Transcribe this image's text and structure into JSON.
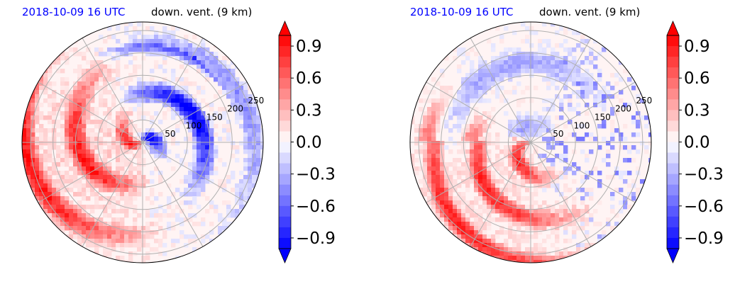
{
  "chart_data": [
    {
      "type": "heatmap",
      "projection": "polar",
      "title_left": "2018-10-09 16 UTC",
      "title_right": "down. vent. (9 km)",
      "radial_ticks": [
        "50",
        "100",
        "150",
        "200",
        "250"
      ],
      "radial_tick_values": [
        50,
        100,
        150,
        200,
        250
      ],
      "colorbar": {
        "ticks": [
          "0.9",
          "0.6",
          "0.3",
          "0.0",
          "−0.3",
          "−0.6",
          "−0.9"
        ],
        "tick_values": [
          0.9,
          0.6,
          0.3,
          0.0,
          -0.3,
          -0.6,
          -0.9
        ],
        "range": [
          -1.0,
          1.0
        ],
        "extend": "both",
        "colormap": "bwr",
        "positive_color": "#ff0000",
        "negative_color": "#0000ff"
      },
      "field_summary": {
        "positive_sector": "west-southwest, spiral bands",
        "negative_sector": "northeast to east",
        "peak_positive": 1.0,
        "peak_negative": -1.0
      }
    },
    {
      "type": "heatmap",
      "projection": "polar",
      "title_left": "2018-10-09 16 UTC",
      "title_right": "down. vent. (9 km)",
      "radial_ticks": [
        "50",
        "100",
        "150",
        "200",
        "250"
      ],
      "radial_tick_values": [
        50,
        100,
        150,
        200,
        250
      ],
      "colorbar": {
        "ticks": [
          "0.9",
          "0.6",
          "0.3",
          "0.0",
          "−0.3",
          "−0.6",
          "−0.9"
        ],
        "tick_values": [
          0.9,
          0.6,
          0.3,
          0.0,
          -0.3,
          -0.6,
          -0.9
        ],
        "range": [
          -1.0,
          1.0
        ],
        "extend": "both",
        "colormap": "bwr",
        "positive_color": "#ff0000",
        "negative_color": "#0000ff"
      },
      "field_summary": {
        "positive_sector": "southwest to south, banded",
        "negative_sector": "north-northeast and east, weak",
        "peak_positive": 1.0,
        "peak_negative": -1.0
      }
    }
  ]
}
